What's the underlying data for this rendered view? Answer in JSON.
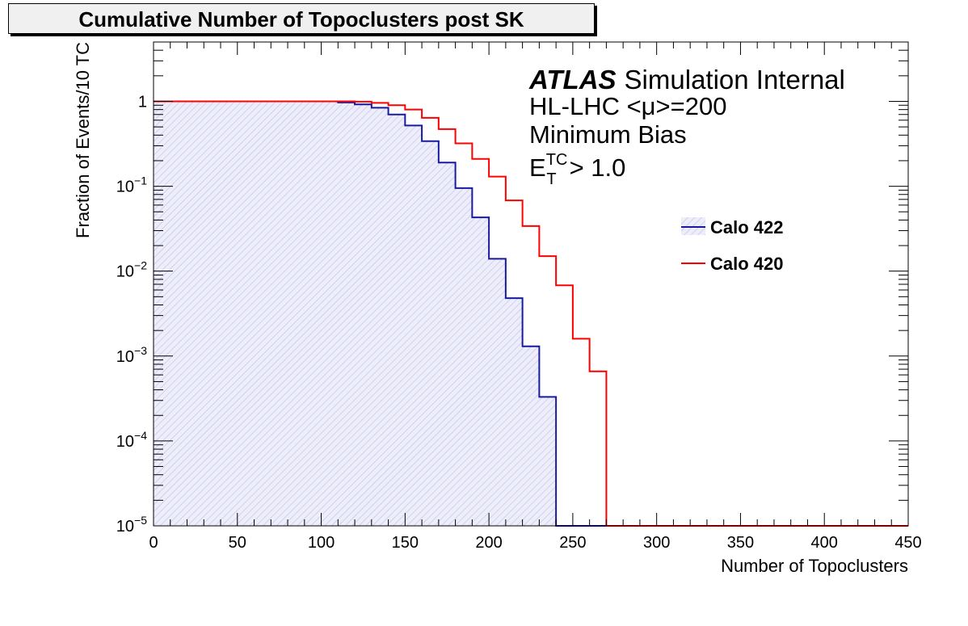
{
  "chart_data": {
    "type": "line",
    "title": "Cumulative Number of Topoclusters post SK",
    "xlabel": "Number of Topoclusters",
    "ylabel": "Fraction of Events/10 TC",
    "xlim": [
      0,
      450
    ],
    "ylim": [
      1e-05,
      5
    ],
    "yscale": "log",
    "xticks": [
      "0",
      "50",
      "100",
      "150",
      "200",
      "250",
      "300",
      "350",
      "400",
      "450"
    ],
    "yticks": [
      {
        "value": 1,
        "base": "1",
        "exp": ""
      },
      {
        "value": 0.1,
        "base": "10",
        "exp": "−1"
      },
      {
        "value": 0.01,
        "base": "10",
        "exp": "−2"
      },
      {
        "value": 0.001,
        "base": "10",
        "exp": "−3"
      },
      {
        "value": 0.0001,
        "base": "10",
        "exp": "−4"
      },
      {
        "value": 1e-05,
        "base": "10",
        "exp": "−5"
      }
    ],
    "bin_edges": [
      0,
      10,
      20,
      30,
      40,
      50,
      60,
      70,
      80,
      90,
      100,
      110,
      120,
      130,
      140,
      150,
      160,
      170,
      180,
      190,
      200,
      210,
      220,
      230,
      240,
      250,
      260,
      270,
      280,
      290,
      300,
      310,
      320,
      330,
      340,
      350,
      360,
      370,
      380,
      390,
      400,
      410,
      420,
      430,
      440,
      450
    ],
    "series": [
      {
        "name": "Calo 422",
        "color": "#1a1a9e",
        "fill": "hatched-lightblue",
        "values": [
          1,
          1,
          1,
          1,
          1,
          1,
          1,
          1,
          1,
          1,
          1,
          0.97,
          0.92,
          0.84,
          0.7,
          0.52,
          0.34,
          0.19,
          0.095,
          0.043,
          0.014,
          0.0048,
          0.0013,
          0.00033,
          0,
          0,
          0,
          0,
          0,
          0,
          0,
          0,
          0,
          0,
          0,
          0,
          0,
          0,
          0,
          0,
          0,
          0,
          0,
          0,
          0
        ]
      },
      {
        "name": "Calo 420",
        "color": "#ff0000",
        "fill": "none",
        "values": [
          1,
          1,
          1,
          1,
          1,
          1,
          1,
          1,
          1,
          1,
          1,
          1,
          0.99,
          0.96,
          0.9,
          0.8,
          0.64,
          0.47,
          0.32,
          0.21,
          0.13,
          0.068,
          0.034,
          0.015,
          0.0068,
          0.0016,
          0.00066,
          0,
          0,
          0,
          0,
          0,
          0,
          0,
          0,
          0,
          0,
          0,
          0,
          0,
          0,
          0,
          0,
          0,
          0
        ]
      }
    ],
    "annotations": {
      "experiment": "ATLAS",
      "status": "Simulation Internal",
      "line2": "HL-LHC <μ>=200",
      "line3": "Minimum Bias",
      "line4_var": "E",
      "line4_sup": "TC",
      "line4_sub": "T",
      "line4_cut": "> 1.0"
    },
    "legend_position": "right"
  }
}
